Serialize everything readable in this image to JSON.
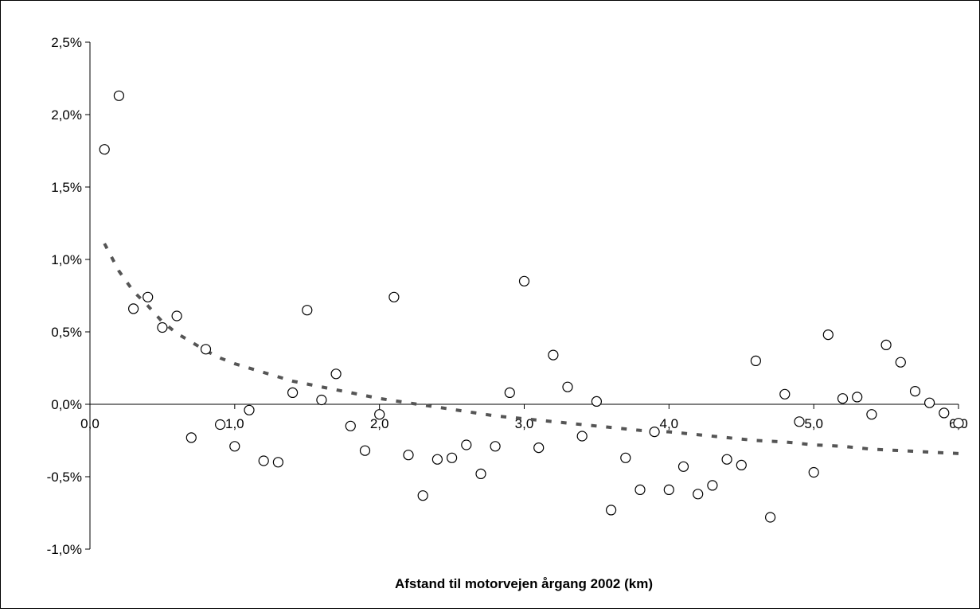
{
  "chart_data": {
    "type": "scatter",
    "xlabel": "Afstand til motorvejen årgang 2002 (km)",
    "ylabel": "",
    "xlim": [
      0,
      6
    ],
    "ylim": [
      -1.0,
      2.5
    ],
    "x_ticks": [
      "0,0",
      "1,0",
      "2,0",
      "3,0",
      "4,0",
      "5,0",
      "6,0"
    ],
    "y_ticks": [
      "2,5%",
      "2,0%",
      "1,5%",
      "1,0%",
      "0,5%",
      "0,0%",
      "-0,5%",
      "-1,0%"
    ],
    "grid": false,
    "legend": "none",
    "marker_color": "#000000",
    "trend_color": "#555555",
    "series": [
      {
        "type": "scatter",
        "x": [
          0.1,
          0.2,
          0.3,
          0.4,
          0.5,
          0.6,
          0.7,
          0.8,
          0.9,
          1.0,
          1.1,
          1.2,
          1.3,
          1.4,
          1.5,
          1.6,
          1.7,
          1.8,
          1.9,
          2.0,
          2.1,
          2.2,
          2.3,
          2.4,
          2.5,
          2.6,
          2.7,
          2.8,
          2.9,
          3.0,
          3.1,
          3.2,
          3.3,
          3.4,
          3.5,
          3.6,
          3.7,
          3.8,
          3.9,
          4.0,
          4.1,
          4.2,
          4.3,
          4.4,
          4.5,
          4.6,
          4.7,
          4.8,
          4.9,
          5.0,
          5.1,
          5.2,
          5.3,
          5.4,
          5.5,
          5.6,
          5.7,
          5.8,
          5.9,
          6.0
        ],
        "y": [
          1.76,
          2.13,
          0.66,
          0.74,
          0.53,
          0.61,
          -0.23,
          0.38,
          -0.14,
          -0.29,
          -0.04,
          -0.39,
          -0.4,
          0.08,
          0.65,
          0.03,
          0.21,
          -0.15,
          -0.32,
          -0.07,
          0.74,
          -0.35,
          -0.63,
          -0.38,
          -0.37,
          -0.28,
          -0.48,
          -0.29,
          0.08,
          0.85,
          -0.3,
          0.34,
          0.12,
          -0.22,
          0.02,
          -0.73,
          -0.37,
          -0.59,
          -0.19,
          -0.59,
          -0.43,
          -0.62,
          -0.56,
          -0.38,
          -0.42,
          0.3,
          -0.78,
          0.07,
          -0.12,
          -0.47,
          0.48,
          0.04,
          0.05,
          -0.07,
          0.41,
          0.29,
          0.09,
          0.01,
          -0.06,
          -0.13
        ]
      },
      {
        "type": "line",
        "style": "dashed",
        "x": [
          0.1,
          0.2,
          0.3,
          0.4,
          0.5,
          0.6,
          0.7,
          0.8,
          0.9,
          1.0,
          1.2,
          1.4,
          1.6,
          1.8,
          2.0,
          2.2,
          2.4,
          2.6,
          2.8,
          3.0,
          3.2,
          3.4,
          3.6,
          3.8,
          4.0,
          4.2,
          4.4,
          4.6,
          4.8,
          5.0,
          5.2,
          5.4,
          5.6,
          5.8,
          6.0
        ],
        "y": [
          1.11,
          0.92,
          0.78,
          0.68,
          0.57,
          0.49,
          0.43,
          0.37,
          0.32,
          0.28,
          0.22,
          0.16,
          0.12,
          0.08,
          0.04,
          0.01,
          -0.02,
          -0.05,
          -0.08,
          -0.1,
          -0.12,
          -0.14,
          -0.16,
          -0.18,
          -0.19,
          -0.21,
          -0.23,
          -0.25,
          -0.26,
          -0.28,
          -0.29,
          -0.31,
          -0.32,
          -0.33,
          -0.34
        ]
      }
    ]
  }
}
